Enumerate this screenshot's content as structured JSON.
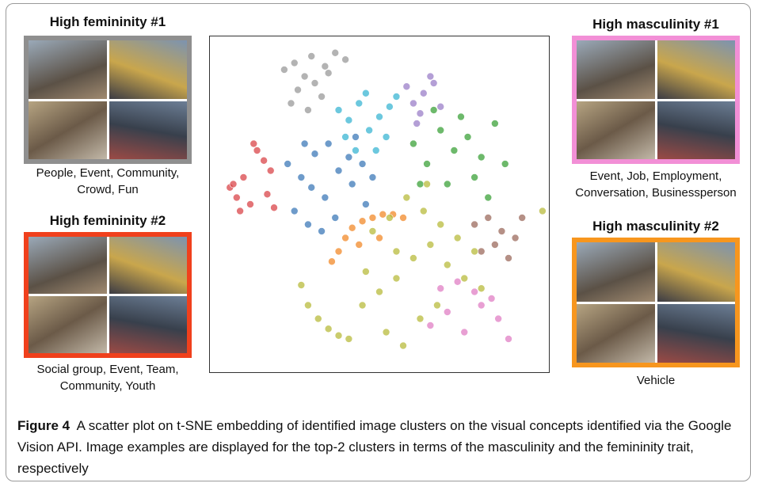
{
  "panels": [
    {
      "title": "High femininity #1",
      "caption": [
        "People, Event, Community,",
        "Crowd, Fun"
      ]
    },
    {
      "title": "High femininity #2",
      "caption": [
        "Social group, Event, Team,",
        "Community, Youth"
      ]
    },
    {
      "title": "High masculinity #1",
      "caption": [
        "Event, Job, Employment,",
        "Conversation, Businessperson"
      ]
    },
    {
      "title": "High masculinity #2",
      "caption": [
        "Vehicle"
      ]
    }
  ],
  "chart_data": {
    "type": "scatter",
    "series": [
      {
        "color": "#9a9a9a",
        "x": [
          22,
          25,
          28,
          31,
          34,
          26,
          30,
          35,
          24,
          33,
          37,
          40,
          29
        ],
        "y": [
          90,
          92,
          88,
          86,
          91,
          84,
          94,
          89,
          80,
          82,
          95,
          93,
          78
        ]
      },
      {
        "color": "#d9464a",
        "x": [
          6,
          8,
          10,
          12,
          9,
          14,
          16,
          18,
          13,
          7,
          17,
          19
        ],
        "y": [
          55,
          52,
          58,
          50,
          48,
          66,
          63,
          60,
          68,
          56,
          53,
          49
        ]
      },
      {
        "color": "#3d79b8",
        "x": [
          23,
          27,
          30,
          34,
          38,
          42,
          46,
          25,
          29,
          33,
          37,
          41,
          45,
          28,
          35,
          43,
          48,
          31
        ],
        "y": [
          62,
          58,
          55,
          52,
          60,
          56,
          50,
          48,
          44,
          42,
          46,
          64,
          62,
          68,
          68,
          70,
          58,
          65
        ]
      },
      {
        "color": "#3bb5d3",
        "x": [
          38,
          41,
          44,
          47,
          50,
          53,
          40,
          46,
          52,
          43,
          49,
          55
        ],
        "y": [
          78,
          75,
          80,
          72,
          76,
          79,
          70,
          83,
          70,
          66,
          66,
          82
        ]
      },
      {
        "color": "#9b7fc8",
        "x": [
          58,
          60,
          63,
          66,
          68,
          62,
          65,
          61
        ],
        "y": [
          85,
          80,
          83,
          86,
          79,
          77,
          88,
          74
        ]
      },
      {
        "color": "#3ca13a",
        "x": [
          60,
          64,
          68,
          72,
          76,
          80,
          84,
          87,
          62,
          70,
          78,
          66,
          74,
          82
        ],
        "y": [
          68,
          62,
          72,
          66,
          70,
          64,
          74,
          62,
          56,
          56,
          58,
          78,
          76,
          52
        ]
      },
      {
        "color": "#9c6b5e",
        "x": [
          78,
          82,
          86,
          90,
          80,
          88,
          84,
          92
        ],
        "y": [
          44,
          46,
          42,
          40,
          36,
          34,
          38,
          46
        ]
      },
      {
        "color": "#f28a2a",
        "x": [
          38,
          40,
          42,
          45,
          48,
          51,
          54,
          57,
          44,
          50,
          36
        ],
        "y": [
          36,
          40,
          43,
          45,
          46,
          47,
          47,
          46,
          38,
          40,
          33
        ]
      },
      {
        "color": "#b8bb3c",
        "x": [
          45,
          50,
          55,
          60,
          65,
          70,
          75,
          80,
          48,
          53,
          58,
          63,
          68,
          73,
          78,
          52,
          57,
          62,
          67,
          46,
          55,
          64,
          27,
          29,
          32,
          35,
          38,
          41,
          98
        ],
        "y": [
          20,
          24,
          28,
          34,
          38,
          32,
          28,
          25,
          42,
          46,
          52,
          48,
          44,
          40,
          36,
          12,
          8,
          16,
          20,
          30,
          36,
          56,
          26,
          20,
          16,
          13,
          11,
          10,
          48
        ]
      },
      {
        "color": "#e07fc4",
        "x": [
          65,
          70,
          75,
          80,
          85,
          68,
          73,
          78,
          83,
          88
        ],
        "y": [
          14,
          18,
          12,
          20,
          16,
          25,
          27,
          24,
          22,
          10
        ]
      }
    ]
  },
  "caption": {
    "label": "Figure 4",
    "text": "A scatter plot on t-SNE embedding of identified image clusters on the visual concepts identified via the Google Vision API. Image examples are displayed for the top-2 clusters in terms of the masculinity and the femininity trait, respectively"
  }
}
